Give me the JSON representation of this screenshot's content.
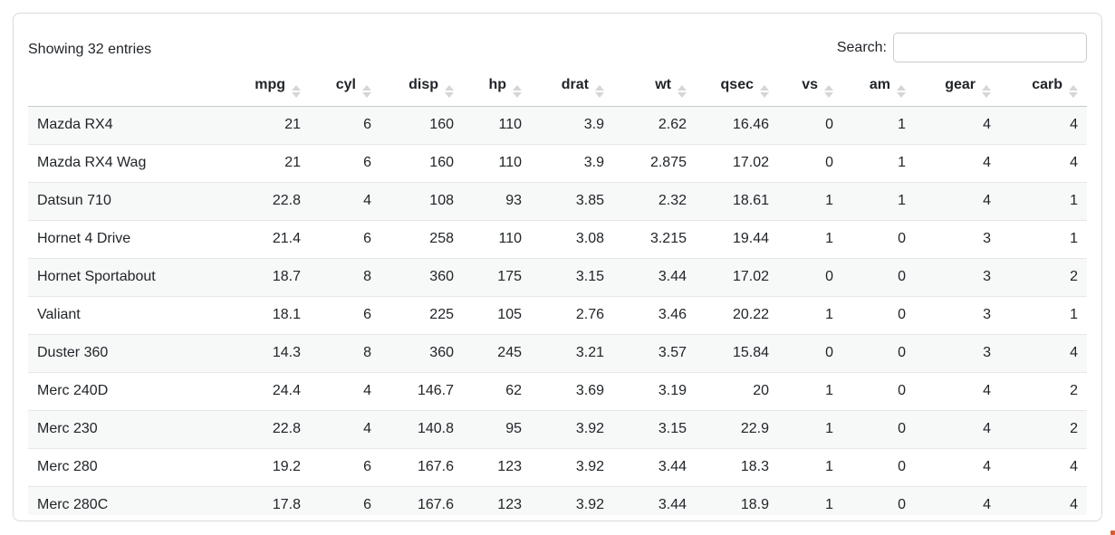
{
  "info_text": "Showing 32 entries",
  "search": {
    "label": "Search:",
    "value": "",
    "placeholder": ""
  },
  "table": {
    "name_column_header": "",
    "columns": [
      "mpg",
      "cyl",
      "disp",
      "hp",
      "drat",
      "wt",
      "qsec",
      "vs",
      "am",
      "gear",
      "carb"
    ],
    "rows": [
      {
        "name": "Mazda RX4",
        "values": [
          21,
          6,
          160,
          110,
          3.9,
          2.62,
          16.46,
          0,
          1,
          4,
          4
        ]
      },
      {
        "name": "Mazda RX4 Wag",
        "values": [
          21,
          6,
          160,
          110,
          3.9,
          2.875,
          17.02,
          0,
          1,
          4,
          4
        ]
      },
      {
        "name": "Datsun 710",
        "values": [
          22.8,
          4,
          108,
          93,
          3.85,
          2.32,
          18.61,
          1,
          1,
          4,
          1
        ]
      },
      {
        "name": "Hornet 4 Drive",
        "values": [
          21.4,
          6,
          258,
          110,
          3.08,
          3.215,
          19.44,
          1,
          0,
          3,
          1
        ]
      },
      {
        "name": "Hornet Sportabout",
        "values": [
          18.7,
          8,
          360,
          175,
          3.15,
          3.44,
          17.02,
          0,
          0,
          3,
          2
        ]
      },
      {
        "name": "Valiant",
        "values": [
          18.1,
          6,
          225,
          105,
          2.76,
          3.46,
          20.22,
          1,
          0,
          3,
          1
        ]
      },
      {
        "name": "Duster 360",
        "values": [
          14.3,
          8,
          360,
          245,
          3.21,
          3.57,
          15.84,
          0,
          0,
          3,
          4
        ]
      },
      {
        "name": "Merc 240D",
        "values": [
          24.4,
          4,
          146.7,
          62,
          3.69,
          3.19,
          20,
          1,
          0,
          4,
          2
        ]
      },
      {
        "name": "Merc 230",
        "values": [
          22.8,
          4,
          140.8,
          95,
          3.92,
          3.15,
          22.9,
          1,
          0,
          4,
          2
        ]
      },
      {
        "name": "Merc 280",
        "values": [
          19.2,
          6,
          167.6,
          123,
          3.92,
          3.44,
          18.3,
          1,
          0,
          4,
          4
        ]
      },
      {
        "name": "Merc 280C",
        "values": [
          17.8,
          6,
          167.6,
          123,
          3.92,
          3.44,
          18.9,
          1,
          0,
          4,
          4
        ]
      }
    ]
  },
  "colors": {
    "text": "#212529",
    "card_border": "#d9dadb",
    "header_border": "#c9c9c9",
    "row_border": "#e7e7e7",
    "stripe": "#f7f8f8",
    "sort_icon": "#d6d6d6"
  }
}
